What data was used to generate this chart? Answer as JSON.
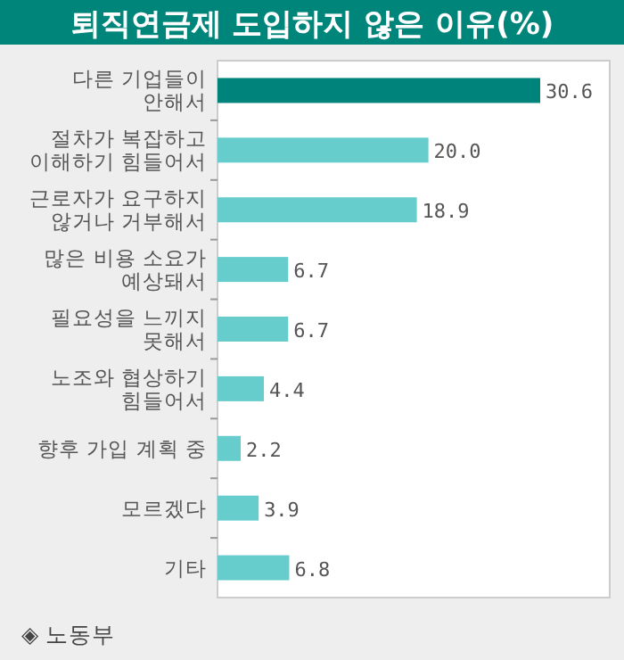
{
  "chart_data": {
    "type": "bar",
    "orientation": "horizontal",
    "title": "퇴직연금제 도입하지 않은 이유(%)",
    "categories": [
      "다른 기업들이 안해서",
      "절차가 복잡하고 이해하기 힘들어서",
      "근로자가 요구하지 않거나 거부해서",
      "많은 비용 소요가 예상돼서",
      "필요성을 느끼지 못해서",
      "노조와 협상하기 힘들어서",
      "향후 가입 계획 중",
      "모르겠다",
      "기타"
    ],
    "values": [
      30.6,
      20.0,
      18.9,
      6.7,
      6.7,
      4.4,
      2.2,
      3.9,
      6.8
    ],
    "colors": [
      "#00837a",
      "#66cccc",
      "#66cccc",
      "#66cccc",
      "#66cccc",
      "#66cccc",
      "#66cccc",
      "#66cccc",
      "#66cccc"
    ],
    "value_labels": [
      "30.6",
      "20.0",
      "18.9",
      "6.7",
      "6.7",
      "4.4",
      "2.2",
      "3.9",
      "6.8"
    ],
    "annotations": [
      "◈ 노동부"
    ]
  }
}
